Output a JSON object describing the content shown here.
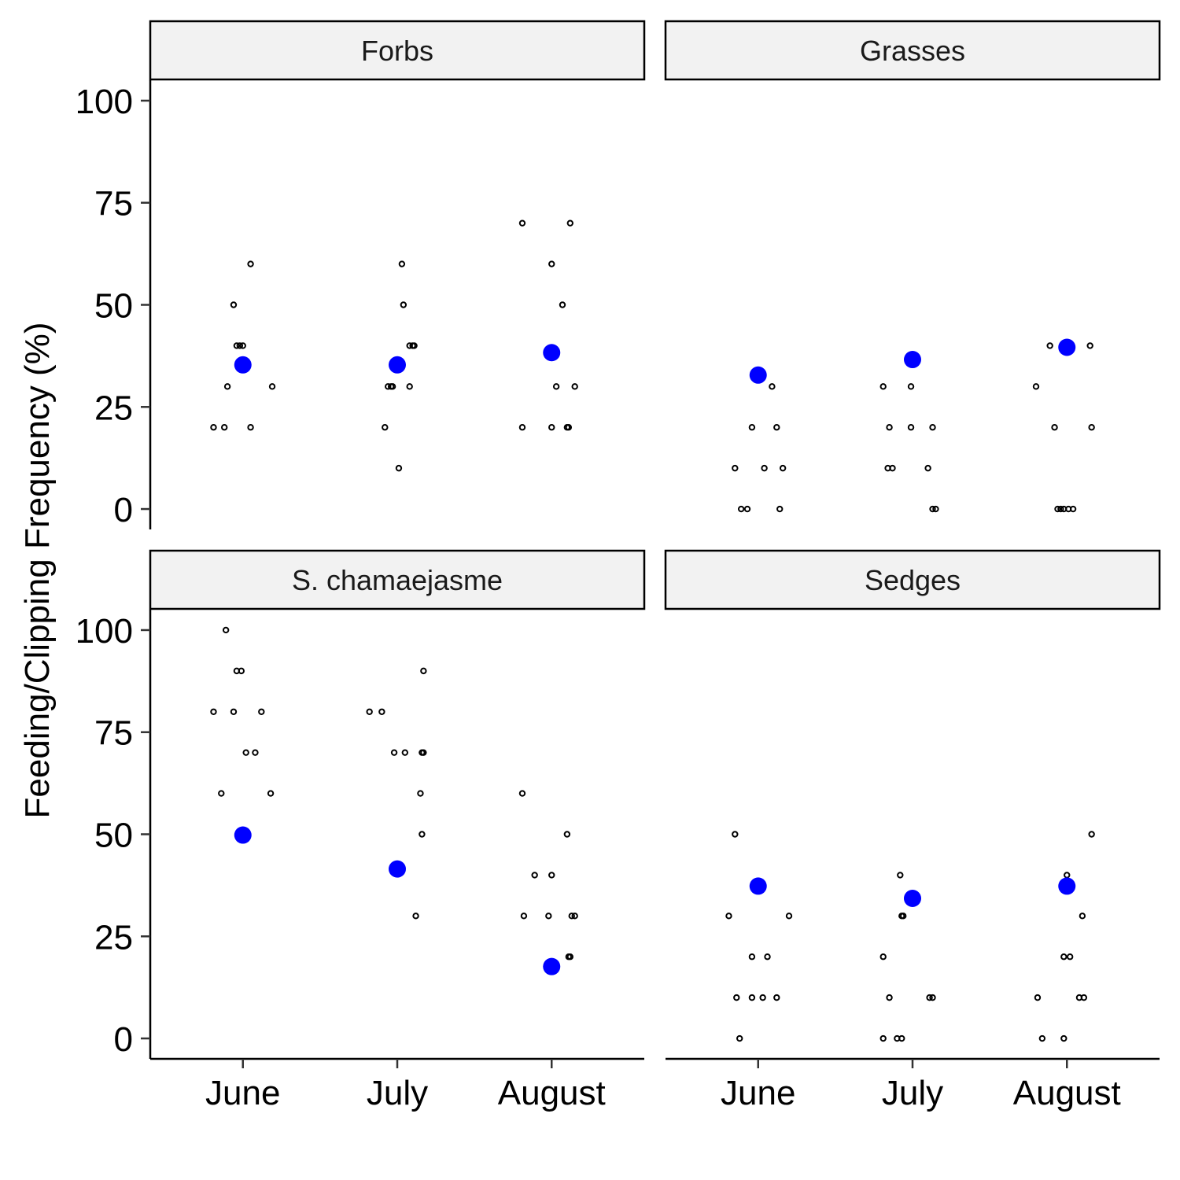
{
  "chart_data": {
    "type": "scatter",
    "ylabel": "Feeding/Clipping Frequency (%)",
    "xlabel": "",
    "categories": [
      "June",
      "July",
      "August"
    ],
    "ylim": [
      -5,
      105
    ],
    "yticks": [
      0,
      25,
      50,
      75,
      100
    ],
    "grid": false,
    "legend": "none",
    "colors": {
      "mean_point": "#0000ff",
      "observation_point": "#000000",
      "strip_fill": "#f2f2f2"
    },
    "panels": [
      {
        "facet": "Forbs",
        "observations": {
          "June": [
            {
              "dx": -0.19,
              "y": 20
            },
            {
              "dx": -0.12,
              "y": 20
            },
            {
              "dx": -0.1,
              "y": 30
            },
            {
              "dx": -0.06,
              "y": 50
            },
            {
              "dx": -0.04,
              "y": 40
            },
            {
              "dx": -0.02,
              "y": 40
            },
            {
              "dx": 0.0,
              "y": 40
            },
            {
              "dx": 0.05,
              "y": 60
            },
            {
              "dx": 0.05,
              "y": 20
            },
            {
              "dx": 0.19,
              "y": 30
            }
          ],
          "July": [
            {
              "dx": -0.08,
              "y": 20
            },
            {
              "dx": -0.06,
              "y": 30
            },
            {
              "dx": -0.04,
              "y": 30
            },
            {
              "dx": -0.03,
              "y": 30
            },
            {
              "dx": 0.01,
              "y": 10
            },
            {
              "dx": 0.03,
              "y": 60
            },
            {
              "dx": 0.04,
              "y": 50
            },
            {
              "dx": 0.08,
              "y": 30
            },
            {
              "dx": 0.08,
              "y": 40
            },
            {
              "dx": 0.1,
              "y": 40
            },
            {
              "dx": 0.11,
              "y": 40
            }
          ],
          "August": [
            {
              "dx": -0.19,
              "y": 70
            },
            {
              "dx": -0.19,
              "y": 20
            },
            {
              "dx": 0.0,
              "y": 60
            },
            {
              "dx": 0.0,
              "y": 20
            },
            {
              "dx": 0.03,
              "y": 30
            },
            {
              "dx": 0.07,
              "y": 50
            },
            {
              "dx": 0.1,
              "y": 20
            },
            {
              "dx": 0.11,
              "y": 20
            },
            {
              "dx": 0.12,
              "y": 70
            },
            {
              "dx": 0.15,
              "y": 30
            }
          ]
        },
        "means": {
          "June": 35.3,
          "July": 35.3,
          "August": 38.3
        }
      },
      {
        "facet": "Grasses",
        "observations": {
          "June": [
            {
              "dx": -0.15,
              "y": 10
            },
            {
              "dx": -0.11,
              "y": 0
            },
            {
              "dx": -0.07,
              "y": 0
            },
            {
              "dx": -0.04,
              "y": 20
            },
            {
              "dx": 0.04,
              "y": 10
            },
            {
              "dx": 0.09,
              "y": 30
            },
            {
              "dx": 0.12,
              "y": 20
            },
            {
              "dx": 0.14,
              "y": 0
            },
            {
              "dx": 0.16,
              "y": 10
            }
          ],
          "July": [
            {
              "dx": -0.19,
              "y": 30
            },
            {
              "dx": -0.16,
              "y": 10
            },
            {
              "dx": -0.15,
              "y": 20
            },
            {
              "dx": -0.13,
              "y": 10
            },
            {
              "dx": -0.01,
              "y": 20
            },
            {
              "dx": -0.01,
              "y": 30
            },
            {
              "dx": 0.1,
              "y": 10
            },
            {
              "dx": 0.13,
              "y": 20
            },
            {
              "dx": 0.13,
              "y": 0
            },
            {
              "dx": 0.15,
              "y": 0
            }
          ],
          "August": [
            {
              "dx": -0.2,
              "y": 30
            },
            {
              "dx": -0.11,
              "y": 40
            },
            {
              "dx": -0.08,
              "y": 20
            },
            {
              "dx": -0.06,
              "y": 0
            },
            {
              "dx": -0.04,
              "y": 0
            },
            {
              "dx": -0.02,
              "y": 0
            },
            {
              "dx": 0.01,
              "y": 0
            },
            {
              "dx": 0.04,
              "y": 0
            },
            {
              "dx": 0.15,
              "y": 40
            },
            {
              "dx": 0.16,
              "y": 20
            }
          ]
        },
        "means": {
          "June": 32.8,
          "July": 36.6,
          "August": 39.6
        }
      },
      {
        "facet": "S. chamaejasme",
        "observations": {
          "June": [
            {
              "dx": -0.19,
              "y": 80
            },
            {
              "dx": -0.14,
              "y": 60
            },
            {
              "dx": -0.11,
              "y": 100
            },
            {
              "dx": -0.06,
              "y": 80
            },
            {
              "dx": -0.04,
              "y": 90
            },
            {
              "dx": -0.01,
              "y": 90
            },
            {
              "dx": 0.02,
              "y": 70
            },
            {
              "dx": 0.08,
              "y": 70
            },
            {
              "dx": 0.12,
              "y": 80
            },
            {
              "dx": 0.18,
              "y": 60
            }
          ],
          "July": [
            {
              "dx": -0.18,
              "y": 80
            },
            {
              "dx": -0.1,
              "y": 80
            },
            {
              "dx": -0.02,
              "y": 70
            },
            {
              "dx": 0.05,
              "y": 70
            },
            {
              "dx": 0.12,
              "y": 30
            },
            {
              "dx": 0.15,
              "y": 60
            },
            {
              "dx": 0.16,
              "y": 70
            },
            {
              "dx": 0.16,
              "y": 50
            },
            {
              "dx": 0.17,
              "y": 70
            },
            {
              "dx": 0.17,
              "y": 90
            }
          ],
          "August": [
            {
              "dx": -0.19,
              "y": 60
            },
            {
              "dx": -0.18,
              "y": 30
            },
            {
              "dx": -0.11,
              "y": 40
            },
            {
              "dx": -0.02,
              "y": 30
            },
            {
              "dx": 0.0,
              "y": 40
            },
            {
              "dx": 0.1,
              "y": 50
            },
            {
              "dx": 0.11,
              "y": 20
            },
            {
              "dx": 0.12,
              "y": 20
            },
            {
              "dx": 0.13,
              "y": 30
            },
            {
              "dx": 0.15,
              "y": 30
            }
          ]
        },
        "means": {
          "June": 49.8,
          "July": 41.5,
          "August": 17.6
        }
      },
      {
        "facet": "Sedges",
        "observations": {
          "June": [
            {
              "dx": -0.19,
              "y": 30
            },
            {
              "dx": -0.15,
              "y": 50
            },
            {
              "dx": -0.14,
              "y": 10
            },
            {
              "dx": -0.12,
              "y": 0
            },
            {
              "dx": -0.04,
              "y": 20
            },
            {
              "dx": -0.04,
              "y": 10
            },
            {
              "dx": 0.03,
              "y": 10
            },
            {
              "dx": 0.06,
              "y": 20
            },
            {
              "dx": 0.12,
              "y": 10
            },
            {
              "dx": 0.2,
              "y": 30
            }
          ],
          "July": [
            {
              "dx": -0.19,
              "y": 20
            },
            {
              "dx": -0.19,
              "y": 0
            },
            {
              "dx": -0.15,
              "y": 10
            },
            {
              "dx": -0.1,
              "y": 0
            },
            {
              "dx": -0.08,
              "y": 40
            },
            {
              "dx": -0.07,
              "y": 0
            },
            {
              "dx": -0.07,
              "y": 30
            },
            {
              "dx": -0.06,
              "y": 30
            },
            {
              "dx": 0.11,
              "y": 10
            },
            {
              "dx": 0.13,
              "y": 10
            }
          ],
          "August": [
            {
              "dx": -0.19,
              "y": 10
            },
            {
              "dx": -0.16,
              "y": 0
            },
            {
              "dx": -0.02,
              "y": 0
            },
            {
              "dx": -0.02,
              "y": 20
            },
            {
              "dx": 0.0,
              "y": 40
            },
            {
              "dx": 0.02,
              "y": 20
            },
            {
              "dx": 0.08,
              "y": 10
            },
            {
              "dx": 0.1,
              "y": 30
            },
            {
              "dx": 0.11,
              "y": 10
            },
            {
              "dx": 0.16,
              "y": 50
            }
          ]
        },
        "means": {
          "June": 37.3,
          "July": 34.3,
          "August": 37.3
        }
      }
    ]
  }
}
